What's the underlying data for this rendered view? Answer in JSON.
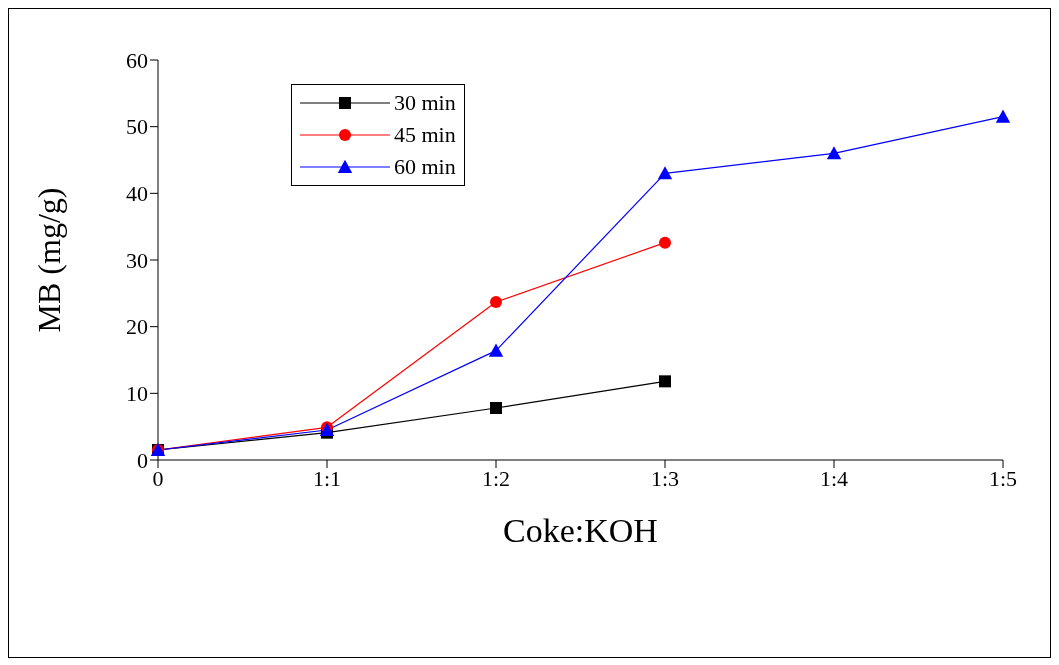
{
  "chart_data": {
    "type": "line",
    "xlabel": "Coke:KOH",
    "ylabel": "MB (mg/g)",
    "categories": [
      "0",
      "1:1",
      "1:2",
      "1:3",
      "1:4",
      "1:5"
    ],
    "ylim": [
      0,
      60
    ],
    "yticks": [
      0,
      10,
      20,
      30,
      40,
      50,
      60
    ],
    "grid": false,
    "legend": "top left",
    "line_style": "solid",
    "series": [
      {
        "name": "30 min",
        "color": "#000000",
        "marker": "square",
        "values": [
          1.5,
          4.1,
          7.8,
          11.8,
          null,
          null
        ]
      },
      {
        "name": "45 min",
        "color": "#ff0000",
        "marker": "circle",
        "values": [
          1.5,
          4.9,
          23.7,
          32.6,
          null,
          null
        ]
      },
      {
        "name": "60 min",
        "color": "#0000ff",
        "marker": "triangle",
        "values": [
          1.5,
          4.5,
          16.4,
          43.0,
          46.0,
          51.5
        ]
      }
    ]
  }
}
